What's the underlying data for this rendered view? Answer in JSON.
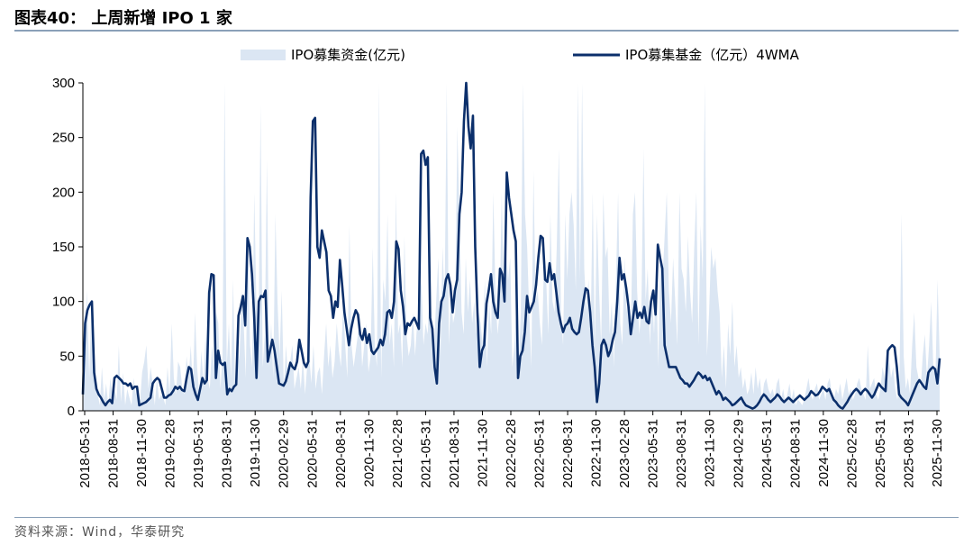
{
  "header": {
    "title": "图表40：  上周新增 IPO 1 家"
  },
  "footer": {
    "source": "资料来源：Wind，华泰研究"
  },
  "chart_data": {
    "type": "area+line",
    "ylim": [
      0,
      300
    ],
    "yticks": [
      0,
      50,
      100,
      150,
      200,
      250,
      300
    ],
    "xlabels": [
      "2018-05-31",
      "2018-08-31",
      "2018-11-30",
      "2019-02-28",
      "2019-05-31",
      "2019-08-31",
      "2019-11-30",
      "2020-02-29",
      "2020-05-31",
      "2020-08-31",
      "2020-11-30",
      "2021-02-28",
      "2021-05-31",
      "2021-08-31",
      "2021-11-30",
      "2022-02-28",
      "2022-05-31",
      "2022-08-31",
      "2022-11-30",
      "2023-02-28",
      "2023-05-31",
      "2023-08-31",
      "2023-11-30",
      "2024-02-29",
      "2024-05-31",
      "2024-08-31",
      "2024-11-30",
      "2025-02-28",
      "2025-05-31",
      "2025-08-31",
      "2025-11-30"
    ],
    "legend": {
      "position": "top",
      "items": [
        {
          "name": "IPO募集资金(亿元)",
          "kind": "area",
          "color": "#dbe6f3"
        },
        {
          "name": "IPO募集基金（亿元）4WMA",
          "kind": "line",
          "color": "#0b2f6b"
        }
      ]
    },
    "series": [
      {
        "name": "IPO募集资金(亿元)",
        "kind": "area",
        "color": "#dbe6f3",
        "values": [
          5,
          60,
          110,
          30,
          95,
          50,
          20,
          15,
          5,
          40,
          10,
          25,
          5,
          30,
          15,
          20,
          10,
          60,
          8,
          35,
          5,
          20,
          12,
          5,
          30,
          15,
          25,
          8,
          35,
          45,
          60,
          20,
          40,
          25,
          5,
          30,
          10,
          15,
          12,
          5,
          40,
          15,
          80,
          30,
          15,
          45,
          40,
          20,
          15,
          50,
          30,
          60,
          20,
          90,
          40,
          15,
          55,
          25,
          70,
          30,
          20,
          60,
          40,
          90,
          80,
          20,
          50,
          300,
          40,
          80,
          30,
          120,
          20,
          70,
          45,
          110,
          80,
          30,
          160,
          60,
          40,
          200,
          100,
          60,
          280,
          40,
          70,
          230,
          40,
          80,
          30,
          180,
          100,
          50,
          110,
          20,
          60,
          30,
          45,
          60,
          20,
          30,
          40,
          20,
          50,
          15,
          40,
          50,
          25,
          60,
          20,
          35,
          40,
          15,
          50,
          80,
          40,
          60,
          30,
          45,
          80,
          55,
          40,
          100,
          60,
          30,
          170,
          60,
          40,
          55,
          70,
          90,
          40,
          60,
          80,
          35,
          50,
          150,
          60,
          40,
          300,
          30,
          120,
          100,
          180,
          60,
          80,
          40,
          200,
          70,
          80,
          40,
          160,
          70,
          50,
          60,
          90,
          50,
          80,
          100,
          120,
          60,
          80,
          70,
          120,
          80,
          60,
          100,
          140,
          50,
          150,
          100,
          300,
          60,
          110,
          80,
          90,
          260,
          180,
          90,
          70,
          140,
          90,
          120,
          80,
          100,
          70,
          90,
          80,
          60,
          120,
          40,
          100,
          70,
          200,
          110,
          70,
          90,
          200,
          100,
          150,
          120,
          140,
          40,
          60,
          100,
          40,
          90,
          300,
          180,
          150,
          90,
          40,
          220,
          100,
          110,
          80,
          60,
          140,
          120,
          70,
          180,
          100,
          90,
          150,
          240,
          90,
          60,
          180,
          120,
          180,
          200,
          170,
          110,
          300,
          120,
          300,
          130,
          90,
          120,
          70,
          200,
          60,
          180,
          110,
          60,
          200,
          140,
          150,
          70,
          100,
          40,
          120,
          200,
          80,
          60,
          140,
          90,
          110,
          70,
          180,
          200,
          110,
          70,
          90,
          240,
          100,
          130,
          60,
          110,
          70,
          130,
          40,
          150,
          120,
          160,
          200,
          110,
          80,
          140,
          100,
          60,
          200,
          130,
          120,
          90,
          160,
          110,
          80,
          150,
          200,
          60,
          170,
          120,
          300,
          50,
          90,
          150,
          130,
          140,
          110,
          90,
          30,
          60,
          20,
          80,
          50,
          100,
          40,
          60,
          30,
          40,
          20,
          30,
          15,
          20,
          35,
          15,
          40,
          20,
          30,
          10,
          25,
          30,
          20,
          15,
          20,
          12,
          25,
          30,
          10,
          20,
          8,
          15,
          25,
          10,
          20,
          5,
          10,
          8,
          5,
          10,
          20,
          30,
          15,
          10,
          20,
          25,
          10,
          15,
          20,
          10,
          25,
          30,
          15,
          10,
          20,
          15,
          25,
          10,
          20,
          30,
          15,
          20,
          10,
          15,
          25,
          30,
          20,
          15,
          10,
          60,
          20,
          25,
          30,
          15,
          10,
          20,
          40,
          30,
          20,
          50,
          30,
          40,
          20,
          10,
          30,
          180,
          50,
          20,
          30,
          15,
          60,
          90,
          40,
          30,
          20,
          50,
          70,
          30,
          60,
          100,
          40,
          30,
          120,
          50
        ]
      },
      {
        "name": "IPO募集基金（亿元）4WMA",
        "kind": "line",
        "color": "#0b2f6b",
        "values": [
          15,
          80,
          92,
          97,
          100,
          35,
          20,
          15,
          12,
          8,
          5,
          8,
          10,
          7,
          30,
          32,
          30,
          28,
          25,
          25,
          23,
          25,
          20,
          22,
          22,
          5,
          6,
          7,
          8,
          10,
          12,
          25,
          28,
          30,
          28,
          20,
          12,
          12,
          14,
          15,
          18,
          22,
          20,
          22,
          19,
          18,
          30,
          40,
          38,
          22,
          15,
          10,
          20,
          30,
          25,
          28,
          108,
          125,
          124,
          30,
          55,
          44,
          42,
          44,
          15,
          20,
          18,
          22,
          24,
          87,
          95,
          105,
          78,
          158,
          150,
          125,
          85,
          30,
          100,
          105,
          104,
          110,
          45,
          55,
          65,
          55,
          40,
          25,
          24,
          23,
          27,
          35,
          44,
          40,
          38,
          45,
          65,
          55,
          44,
          40,
          45,
          195,
          265,
          268,
          150,
          140,
          165,
          155,
          145,
          110,
          105,
          85,
          100,
          95,
          138,
          115,
          90,
          75,
          60,
          75,
          85,
          92,
          88,
          70,
          65,
          75,
          62,
          70,
          55,
          52,
          55,
          58,
          65,
          60,
          70,
          90,
          92,
          85,
          100,
          155,
          148,
          110,
          95,
          70,
          80,
          78,
          82,
          85,
          80,
          75,
          235,
          238,
          225,
          232,
          85,
          75,
          40,
          25,
          80,
          100,
          105,
          120,
          125,
          115,
          90,
          110,
          120,
          180,
          200,
          265,
          300,
          260,
          240,
          270,
          150,
          90,
          40,
          55,
          60,
          98,
          110,
          125,
          100,
          90,
          85,
          130,
          125,
          100,
          218,
          195,
          180,
          165,
          155,
          30,
          50,
          55,
          72,
          105,
          90,
          95,
          100,
          115,
          140,
          160,
          158,
          120,
          118,
          135,
          120,
          125,
          108,
          90,
          80,
          72,
          78,
          80,
          85,
          75,
          72,
          70,
          72,
          85,
          100,
          112,
          110,
          90,
          60,
          40,
          8,
          25,
          60,
          65,
          60,
          50,
          55,
          65,
          72,
          100,
          140,
          120,
          125,
          112,
          95,
          70,
          85,
          100,
          85,
          90,
          85,
          95,
          82,
          80,
          100,
          110,
          88,
          152,
          140,
          130,
          60,
          50,
          40,
          40,
          40,
          40,
          35,
          30,
          28,
          25,
          25,
          22,
          25,
          28,
          32,
          35,
          33,
          30,
          32,
          28,
          30,
          25,
          20,
          15,
          18,
          15,
          10,
          12,
          10,
          8,
          5,
          6,
          8,
          10,
          12,
          8,
          5,
          4,
          3,
          2,
          3,
          5,
          8,
          12,
          15,
          13,
          10,
          8,
          10,
          12,
          15,
          13,
          10,
          8,
          10,
          12,
          10,
          8,
          10,
          12,
          14,
          12,
          10,
          12,
          14,
          18,
          16,
          14,
          15,
          18,
          22,
          20,
          18,
          20,
          15,
          10,
          8,
          5,
          3,
          2,
          5,
          8,
          12,
          15,
          18,
          20,
          18,
          15,
          18,
          20,
          18,
          15,
          12,
          15,
          20,
          25,
          22,
          20,
          18,
          55,
          58,
          60,
          58,
          40,
          15,
          12,
          10,
          8,
          5,
          10,
          15,
          20,
          25,
          28,
          25,
          22,
          20,
          35,
          38,
          40,
          38,
          25,
          48
        ]
      }
    ]
  }
}
